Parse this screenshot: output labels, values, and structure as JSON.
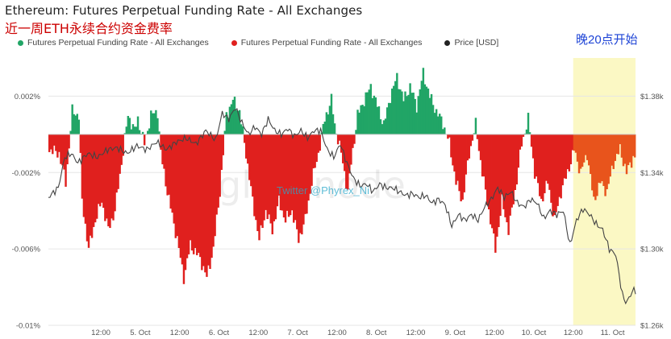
{
  "title": "Ethereum: Futures Perpetual Funding Rate - All Exchanges",
  "subtitle": "近一周ETH永续合约资金费率",
  "annotation": "晚20点开始",
  "handle": "Twitter @Phyrex_Ni",
  "watermark": "glassnode",
  "colors": {
    "positive": "#21a566",
    "negative": "#e0201e",
    "price": "#444444",
    "highlight": "#fbf8c4",
    "accent": "#cc0000",
    "annotation": "#1e44d6"
  },
  "legend": [
    {
      "label": "Futures Perpetual Funding Rate - All Exchanges",
      "color": "#21a566",
      "icon": "circle-icon"
    },
    {
      "label": "Futures Perpetual Funding Rate - All Exchanges",
      "color": "#e0201e",
      "icon": "circle-icon"
    },
    {
      "label": "Price [USD]",
      "color": "#222222",
      "icon": "circle-icon"
    }
  ],
  "chart_data": {
    "type": "bar",
    "y_left_ticks": [
      "0.002%",
      "-0.002%",
      "-0.006%",
      "-0.01%"
    ],
    "y_left_values": [
      0.002,
      -0.002,
      -0.006,
      -0.01
    ],
    "y_left_range": [
      -0.01,
      0.004
    ],
    "y_right_ticks": [
      "$1.38k",
      "$1.34k",
      "$1.30k",
      "$1.26k"
    ],
    "y_right_values": [
      1380,
      1340,
      1300,
      1260
    ],
    "y_right_range": [
      1260,
      1400
    ],
    "x_ticks": [
      "12:00",
      "5. Oct",
      "12:00",
      "6. Oct",
      "12:00",
      "7. Oct",
      "12:00",
      "8. Oct",
      "12:00",
      "9. Oct",
      "12:00",
      "10. Oct",
      "12:00",
      "11. Oct"
    ],
    "x_tick_hours": [
      12,
      24,
      36,
      48,
      60,
      72,
      84,
      96,
      108,
      120,
      132,
      144,
      156,
      168
    ],
    "x_range_hours": [
      -4,
      175
    ],
    "highlight_from_hour": 156,
    "funding_rate_keypoints": [
      [
        -4,
        -0.0008
      ],
      [
        -1,
        -0.001
      ],
      [
        1,
        -0.0025
      ],
      [
        3,
        0.0012
      ],
      [
        5,
        0.001
      ],
      [
        6,
        -0.0035
      ],
      [
        8,
        -0.006
      ],
      [
        10,
        -0.0045
      ],
      [
        12,
        -0.0035
      ],
      [
        14,
        -0.005
      ],
      [
        16,
        -0.004
      ],
      [
        18,
        -0.0015
      ],
      [
        20,
        0.001
      ],
      [
        22,
        0.0002
      ],
      [
        23,
        0.0008
      ],
      [
        25,
        -0.0005
      ],
      [
        27,
        0.001
      ],
      [
        29,
        0.0012
      ],
      [
        30,
        -0.001
      ],
      [
        32,
        -0.003
      ],
      [
        35,
        -0.0055
      ],
      [
        37,
        -0.0075
      ],
      [
        39,
        -0.0058
      ],
      [
        42,
        -0.0065
      ],
      [
        44,
        -0.0075
      ],
      [
        46,
        -0.006
      ],
      [
        48,
        -0.003
      ],
      [
        50,
        0.001
      ],
      [
        52,
        0.0018
      ],
      [
        54,
        0.0012
      ],
      [
        56,
        -0.001
      ],
      [
        58,
        -0.0035
      ],
      [
        60,
        -0.0055
      ],
      [
        62,
        -0.004
      ],
      [
        64,
        -0.005
      ],
      [
        66,
        -0.0035
      ],
      [
        68,
        -0.0045
      ],
      [
        70,
        -0.004
      ],
      [
        72,
        -0.0055
      ],
      [
        74,
        -0.0045
      ],
      [
        76,
        -0.0025
      ],
      [
        78,
        -0.001
      ],
      [
        80,
        0.0008
      ],
      [
        82,
        0.0018
      ],
      [
        83,
        0.0005
      ],
      [
        85,
        -0.001
      ],
      [
        87,
        -0.003
      ],
      [
        88,
        -0.0015
      ],
      [
        90,
        0.001
      ],
      [
        92,
        0.0018
      ],
      [
        94,
        0.0025
      ],
      [
        96,
        0.0015
      ],
      [
        98,
        0.0005
      ],
      [
        100,
        0.002
      ],
      [
        102,
        0.003
      ],
      [
        104,
        0.0018
      ],
      [
        106,
        0.0025
      ],
      [
        108,
        0.0015
      ],
      [
        110,
        0.0032
      ],
      [
        112,
        0.002
      ],
      [
        114,
        0.0012
      ],
      [
        116,
        0.0006
      ],
      [
        118,
        -0.0005
      ],
      [
        120,
        -0.0025
      ],
      [
        122,
        -0.0035
      ],
      [
        124,
        -0.001
      ],
      [
        126,
        0.0005
      ],
      [
        128,
        -0.002
      ],
      [
        130,
        -0.004
      ],
      [
        132,
        -0.006
      ],
      [
        134,
        -0.0035
      ],
      [
        136,
        -0.005
      ],
      [
        138,
        -0.003
      ],
      [
        140,
        -0.0005
      ],
      [
        142,
        0.0008
      ],
      [
        144,
        -0.002
      ],
      [
        146,
        -0.0035
      ],
      [
        148,
        -0.0025
      ],
      [
        150,
        -0.0045
      ],
      [
        152,
        -0.003
      ],
      [
        154,
        -0.002
      ],
      [
        156,
        -0.0008
      ],
      [
        158,
        -0.002
      ],
      [
        160,
        -0.001
      ],
      [
        162,
        -0.0035
      ],
      [
        164,
        -0.0025
      ],
      [
        166,
        -0.003
      ],
      [
        168,
        -0.0015
      ],
      [
        170,
        -0.0008
      ],
      [
        172,
        -0.002
      ],
      [
        174,
        -0.0012
      ]
    ],
    "price_keypoints": [
      [
        -4,
        1327
      ],
      [
        -1,
        1332
      ],
      [
        1,
        1348
      ],
      [
        3,
        1350
      ],
      [
        5,
        1345
      ],
      [
        8,
        1350
      ],
      [
        11,
        1348
      ],
      [
        14,
        1352
      ],
      [
        17,
        1353
      ],
      [
        20,
        1350
      ],
      [
        23,
        1354
      ],
      [
        26,
        1352
      ],
      [
        29,
        1356
      ],
      [
        32,
        1352
      ],
      [
        35,
        1356
      ],
      [
        38,
        1358
      ],
      [
        41,
        1355
      ],
      [
        44,
        1362
      ],
      [
        47,
        1357
      ],
      [
        49,
        1371
      ],
      [
        51,
        1368
      ],
      [
        53,
        1374
      ],
      [
        55,
        1366
      ],
      [
        57,
        1360
      ],
      [
        59,
        1364
      ],
      [
        61,
        1360
      ],
      [
        63,
        1368
      ],
      [
        65,
        1362
      ],
      [
        67,
        1360
      ],
      [
        69,
        1363
      ],
      [
        71,
        1359
      ],
      [
        73,
        1362
      ],
      [
        75,
        1358
      ],
      [
        77,
        1362
      ],
      [
        79,
        1362
      ],
      [
        81,
        1352
      ],
      [
        83,
        1348
      ],
      [
        85,
        1355
      ],
      [
        87,
        1345
      ],
      [
        89,
        1337
      ],
      [
        91,
        1333
      ],
      [
        93,
        1334
      ],
      [
        95,
        1330
      ],
      [
        97,
        1334
      ],
      [
        99,
        1332
      ],
      [
        101,
        1332
      ],
      [
        103,
        1330
      ],
      [
        105,
        1328
      ],
      [
        107,
        1329
      ],
      [
        109,
        1327
      ],
      [
        111,
        1328
      ],
      [
        113,
        1324
      ],
      [
        115,
        1326
      ],
      [
        117,
        1323
      ],
      [
        119,
        1312
      ],
      [
        121,
        1318
      ],
      [
        123,
        1315
      ],
      [
        125,
        1318
      ],
      [
        127,
        1315
      ],
      [
        129,
        1322
      ],
      [
        131,
        1326
      ],
      [
        133,
        1332
      ],
      [
        135,
        1327
      ],
      [
        137,
        1330
      ],
      [
        139,
        1324
      ],
      [
        141,
        1322
      ],
      [
        143,
        1326
      ],
      [
        145,
        1324
      ],
      [
        147,
        1316
      ],
      [
        149,
        1320
      ],
      [
        151,
        1318
      ],
      [
        153,
        1320
      ],
      [
        155,
        1302
      ],
      [
        157,
        1315
      ],
      [
        159,
        1321
      ],
      [
        161,
        1318
      ],
      [
        163,
        1313
      ],
      [
        165,
        1310
      ],
      [
        167,
        1300
      ],
      [
        169,
        1297
      ],
      [
        171,
        1276
      ],
      [
        172,
        1272
      ],
      [
        173,
        1274
      ],
      [
        174,
        1278
      ]
    ]
  }
}
